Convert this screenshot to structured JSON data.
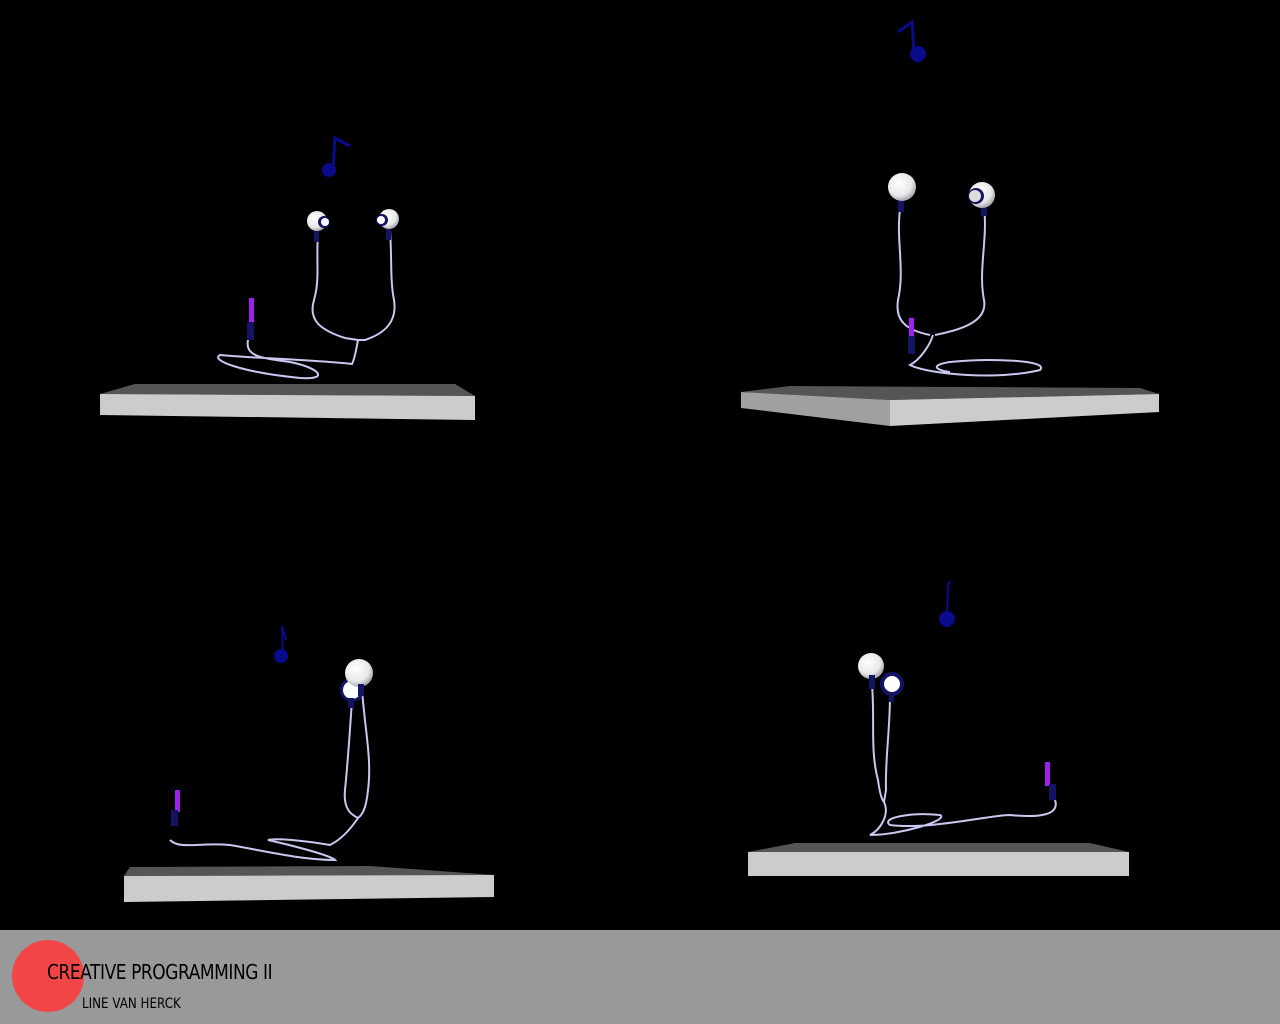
{
  "footer": {
    "title": "CREATIVE PROGRAMMING II",
    "subtitle": "LINE VAN HERCK",
    "circle_color": "#f24545",
    "background_color": "#999999"
  },
  "scene": {
    "background_color": "#000000",
    "platform_top_color": "#555555",
    "platform_front_color": "#cccccc",
    "cable_color": "#c8c8f0",
    "note_color": "#0a0a8c",
    "jack_color": "#a020f0",
    "earbud_color": "#ffffff",
    "earbud_accent_color": "#141464",
    "views": [
      {
        "name": "view-top-left",
        "icon": "earphones-icon",
        "note_icon": "music-note-icon"
      },
      {
        "name": "view-top-right",
        "icon": "earphones-icon",
        "note_icon": "music-note-icon"
      },
      {
        "name": "view-bottom-left",
        "icon": "earphones-icon",
        "note_icon": "music-note-icon"
      },
      {
        "name": "view-bottom-right",
        "icon": "earphones-icon",
        "note_icon": "music-note-icon"
      }
    ]
  }
}
